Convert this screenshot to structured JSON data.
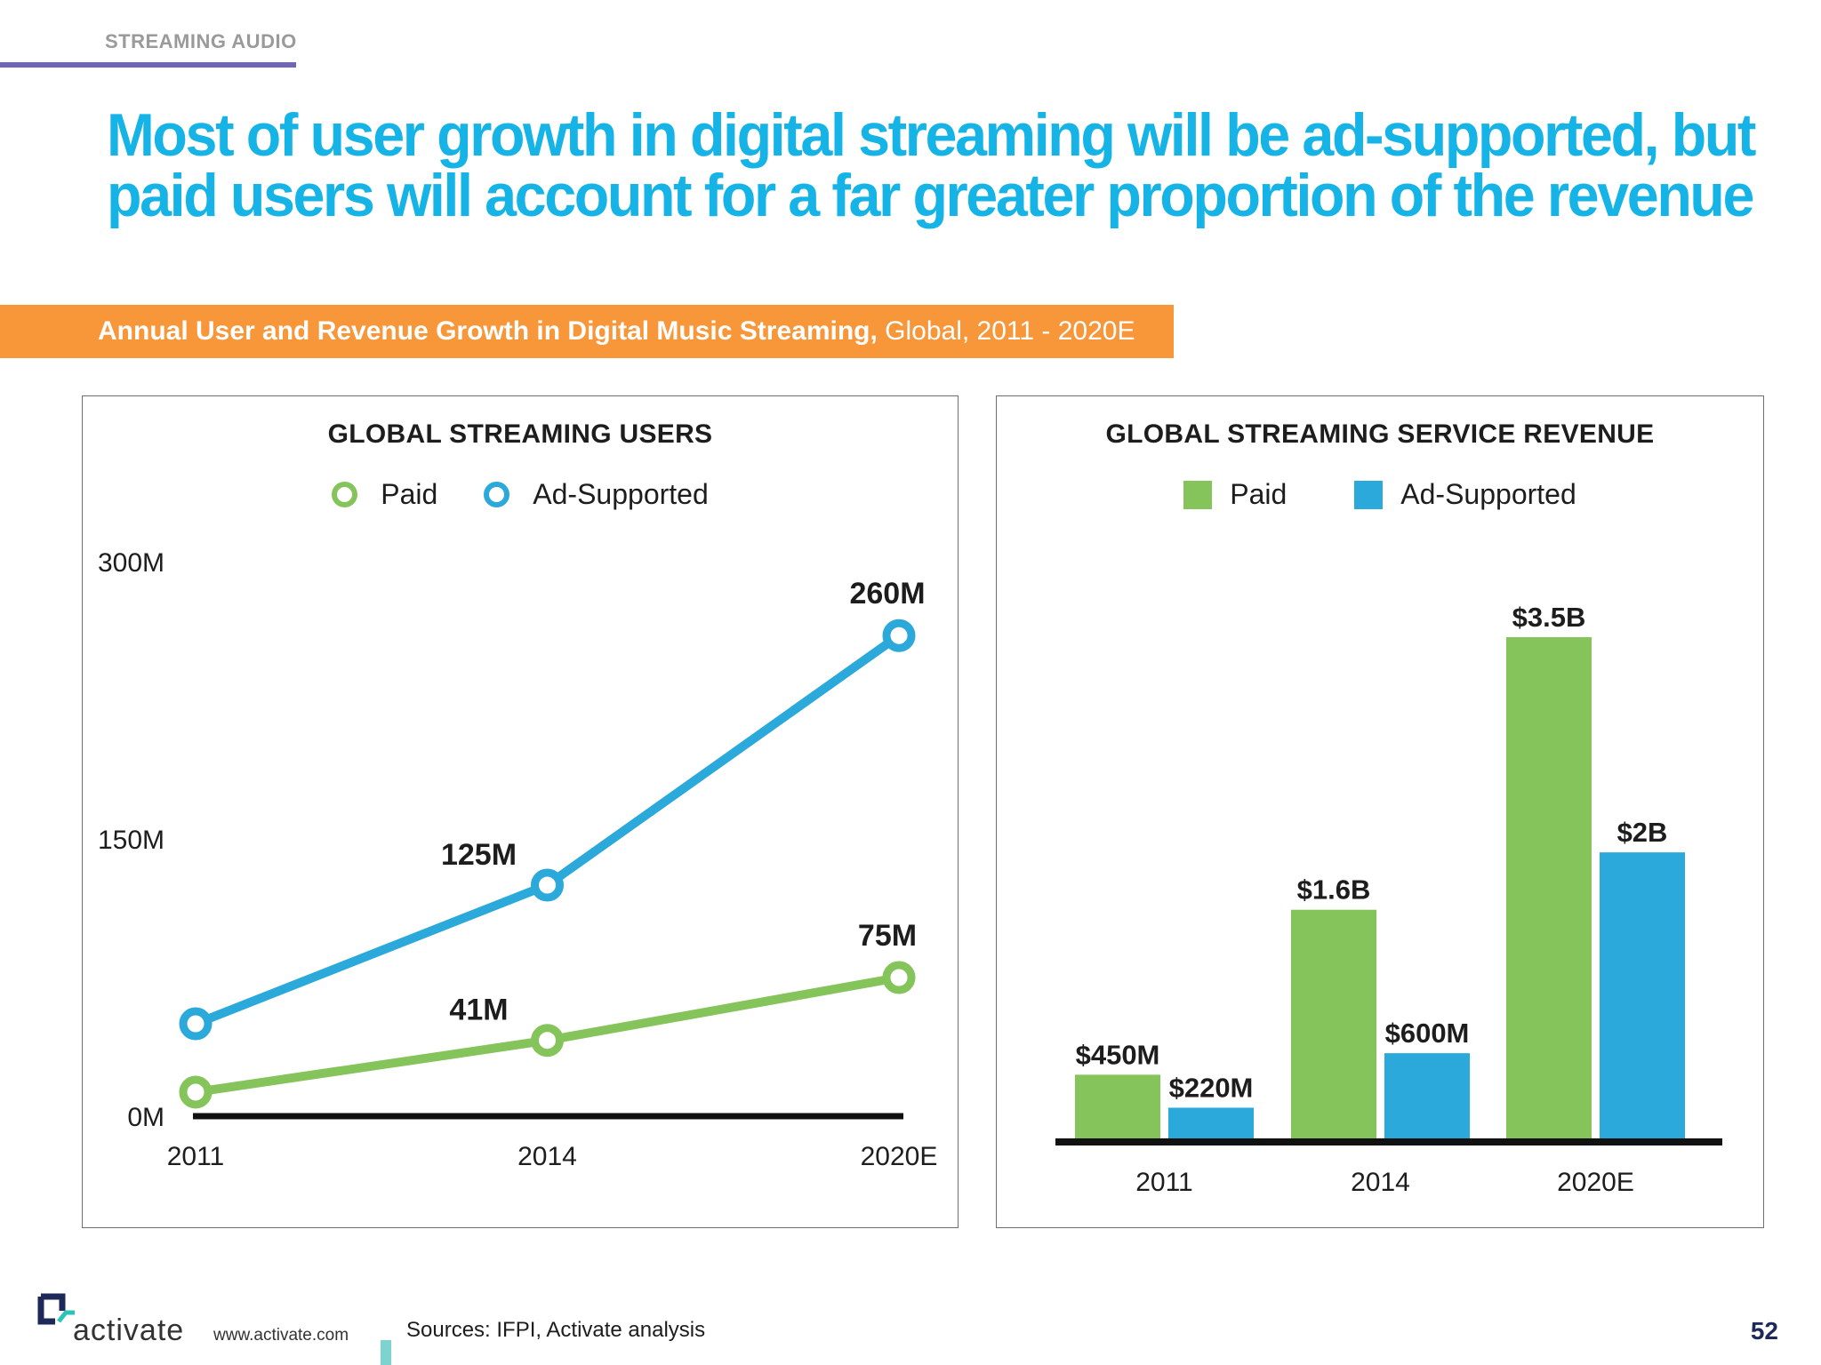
{
  "section_label": "STREAMING AUDIO",
  "headline": {
    "line1": "Most of user growth in digital streaming will be ad-supported, but",
    "line2": "paid users will account for a far greater proportion of the revenue"
  },
  "banner": {
    "bold": "Annual User and Revenue Growth in Digital Music Streaming,",
    "regular": " Global, 2011 - 2020E"
  },
  "colors": {
    "paid": "#85c45a",
    "ad_supported": "#2aa9da",
    "accent": "#16b3e6",
    "banner": "#f7973a"
  },
  "chart_data": [
    {
      "type": "line",
      "title": "GLOBAL STREAMING USERS",
      "categories": [
        "2011",
        "2014",
        "2020E"
      ],
      "y_ticks": [
        "300M",
        "150M",
        "0M"
      ],
      "ylim": [
        0,
        300
      ],
      "legend": [
        "Paid",
        "Ad-Supported"
      ],
      "series": [
        {
          "name": "Paid",
          "values": [
            13,
            41,
            75
          ],
          "labels": [
            "",
            "41M",
            "75M"
          ]
        },
        {
          "name": "Ad-Supported",
          "values": [
            50,
            125,
            260
          ],
          "labels": [
            "",
            "125M",
            "260M"
          ]
        }
      ]
    },
    {
      "type": "bar",
      "title": "GLOBAL STREAMING SERVICE REVENUE",
      "categories": [
        "2011",
        "2014",
        "2020E"
      ],
      "legend": [
        "Paid",
        "Ad-Supported"
      ],
      "series": [
        {
          "name": "Paid",
          "values": [
            450,
            1600,
            3500
          ],
          "labels": [
            "$450M",
            "$1.6B",
            "$3.5B"
          ]
        },
        {
          "name": "Ad-Supported",
          "values": [
            220,
            600,
            2000
          ],
          "labels": [
            "$220M",
            "$600M",
            "$2B"
          ]
        }
      ]
    }
  ],
  "footer": {
    "logo_text": "activate",
    "url": "www.activate.com",
    "sources": "Sources: IFPI, Activate analysis",
    "page_number": "52"
  }
}
